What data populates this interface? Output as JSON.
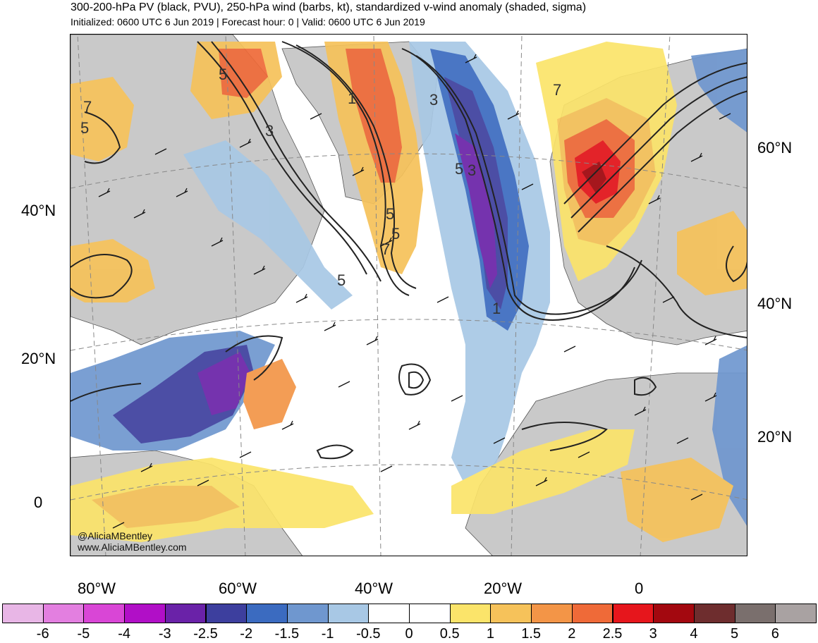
{
  "header": {
    "title": "300-200-hPa PV (black, PVU), 250-hPa wind (barbs, kt), standardized v-wind anomaly (shaded, sigma)",
    "subtitle": "Initialized: 0600 UTC 6 Jun 2019 | Forecast hour: 0 | Valid: 0600 UTC 6 Jun 2019"
  },
  "map": {
    "left_lat_labels": [
      "40°N",
      "20°N",
      "0"
    ],
    "right_lat_labels": [
      "60°N",
      "40°N",
      "20°N"
    ],
    "lon_labels": [
      "80°W",
      "60°W",
      "40°W",
      "20°W",
      "0"
    ],
    "contour_labels": [
      "5",
      "1",
      "5",
      "3",
      "5",
      "7",
      "5",
      "3",
      "3",
      "5",
      "7",
      "5",
      "7",
      "1"
    ],
    "credits": [
      "@AliciaMBentley",
      "www.AliciaMBentley.com"
    ]
  },
  "colorbar": {
    "labels": [
      "-6",
      "-5",
      "-4",
      "-3",
      "-2.5",
      "-2",
      "-1.5",
      "-1",
      "-0.5",
      "0",
      "0.5",
      "1",
      "1.5",
      "2",
      "2.5",
      "3",
      "4",
      "5",
      "6"
    ],
    "colors": [
      "#e8b6e6",
      "#e37fe0",
      "#d946d6",
      "#b10fc7",
      "#6a22a8",
      "#3d3f9e",
      "#3b6bc0",
      "#6f97cf",
      "#a8c8e5",
      "#ffffff",
      "#ffffff",
      "#fbe46a",
      "#f6c25a",
      "#f39547",
      "#ef6a38",
      "#e6161c",
      "#a3080f",
      "#6e2d2e",
      "#7a6f6d",
      "#a9a2a2"
    ]
  }
}
